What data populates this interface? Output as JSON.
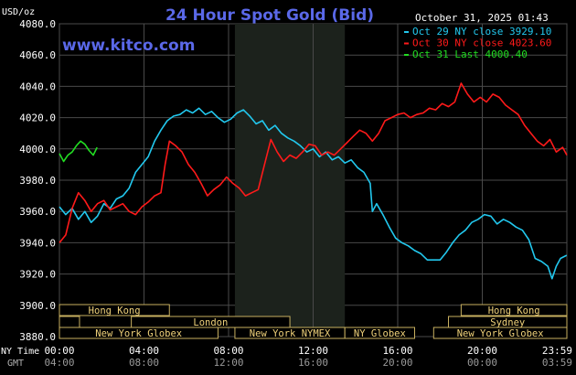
{
  "chart_data": {
    "type": "line",
    "title": "24 Hour Spot Gold (Bid)",
    "site": "www.kitco.com",
    "timestamp": "October 31, 2025 01:43",
    "unit_label": "USD/oz",
    "ylim": [
      3880,
      4080
    ],
    "y_ticks": [
      "4080.0",
      "4060.0",
      "4040.0",
      "4020.0",
      "4000.0",
      "3980.0",
      "3960.0",
      "3940.0",
      "3920.0",
      "3900.0",
      "3880.0"
    ],
    "y_tick_values": [
      4080,
      4060,
      4040,
      4020,
      4000,
      3980,
      3960,
      3940,
      3920,
      3900,
      3880
    ],
    "x_range_hours": [
      0,
      24
    ],
    "x_tick_hours": [
      0,
      4,
      8,
      12,
      16,
      20,
      24
    ],
    "ny_time_label": "NY Time",
    "gmt_label": "GMT",
    "ny_ticks": [
      "00:00",
      "04:00",
      "08:00",
      "12:00",
      "16:00",
      "20:00",
      "23:59"
    ],
    "gmt_ticks": [
      "04:00",
      "08:00",
      "12:00",
      "16:00",
      "20:00",
      "00:00",
      "03:59"
    ],
    "legend_placement": "top-right",
    "shaded_region_hours": [
      8.3,
      13.5
    ],
    "series": [
      {
        "name": "Oct 29 NY close 3929.10",
        "color": "#22c8ee",
        "points": [
          [
            0,
            3963
          ],
          [
            0.3,
            3958
          ],
          [
            0.6,
            3962
          ],
          [
            0.9,
            3955
          ],
          [
            1.2,
            3960
          ],
          [
            1.5,
            3953
          ],
          [
            1.8,
            3957
          ],
          [
            2.1,
            3965
          ],
          [
            2.4,
            3962
          ],
          [
            2.7,
            3968
          ],
          [
            3.0,
            3970
          ],
          [
            3.3,
            3975
          ],
          [
            3.6,
            3985
          ],
          [
            3.9,
            3990
          ],
          [
            4.2,
            3995
          ],
          [
            4.5,
            4005
          ],
          [
            4.8,
            4012
          ],
          [
            5.1,
            4018
          ],
          [
            5.4,
            4021
          ],
          [
            5.7,
            4022
          ],
          [
            6.0,
            4025
          ],
          [
            6.3,
            4023
          ],
          [
            6.6,
            4026
          ],
          [
            6.9,
            4022
          ],
          [
            7.2,
            4024
          ],
          [
            7.5,
            4020
          ],
          [
            7.8,
            4017
          ],
          [
            8.1,
            4019
          ],
          [
            8.4,
            4023
          ],
          [
            8.7,
            4025
          ],
          [
            9.0,
            4021
          ],
          [
            9.3,
            4016
          ],
          [
            9.6,
            4018
          ],
          [
            9.9,
            4012
          ],
          [
            10.2,
            4015
          ],
          [
            10.5,
            4010
          ],
          [
            10.8,
            4007
          ],
          [
            11.1,
            4005
          ],
          [
            11.4,
            4002
          ],
          [
            11.7,
            3998
          ],
          [
            12.0,
            4000
          ],
          [
            12.3,
            3995
          ],
          [
            12.6,
            3998
          ],
          [
            12.9,
            3993
          ],
          [
            13.2,
            3995
          ],
          [
            13.5,
            3991
          ],
          [
            13.8,
            3993
          ],
          [
            14.1,
            3988
          ],
          [
            14.4,
            3985
          ],
          [
            14.7,
            3978
          ],
          [
            14.8,
            3960
          ],
          [
            15.0,
            3965
          ],
          [
            15.3,
            3958
          ],
          [
            15.6,
            3950
          ],
          [
            15.9,
            3943
          ],
          [
            16.2,
            3940
          ],
          [
            16.5,
            3938
          ],
          [
            16.8,
            3935
          ],
          [
            17.1,
            3933
          ],
          [
            17.4,
            3929
          ],
          [
            18.0,
            3929
          ],
          [
            18.3,
            3934
          ],
          [
            18.6,
            3940
          ],
          [
            18.9,
            3945
          ],
          [
            19.2,
            3948
          ],
          [
            19.5,
            3953
          ],
          [
            19.8,
            3955
          ],
          [
            20.1,
            3958
          ],
          [
            20.4,
            3957
          ],
          [
            20.7,
            3952
          ],
          [
            21.0,
            3955
          ],
          [
            21.3,
            3953
          ],
          [
            21.6,
            3950
          ],
          [
            21.9,
            3948
          ],
          [
            22.2,
            3942
          ],
          [
            22.5,
            3930
          ],
          [
            22.8,
            3928
          ],
          [
            23.1,
            3925
          ],
          [
            23.3,
            3917
          ],
          [
            23.5,
            3925
          ],
          [
            23.7,
            3930
          ],
          [
            23.99,
            3932
          ]
        ]
      },
      {
        "name": "Oct 30 NY close 4023.60",
        "color": "#ff1a1a",
        "points": [
          [
            0,
            3940
          ],
          [
            0.3,
            3945
          ],
          [
            0.6,
            3962
          ],
          [
            0.9,
            3972
          ],
          [
            1.2,
            3967
          ],
          [
            1.5,
            3960
          ],
          [
            1.8,
            3965
          ],
          [
            2.1,
            3967
          ],
          [
            2.4,
            3961
          ],
          [
            2.7,
            3963
          ],
          [
            3.0,
            3965
          ],
          [
            3.3,
            3960
          ],
          [
            3.6,
            3958
          ],
          [
            3.9,
            3963
          ],
          [
            4.2,
            3966
          ],
          [
            4.5,
            3970
          ],
          [
            4.8,
            3972
          ],
          [
            5.0,
            3990
          ],
          [
            5.2,
            4005
          ],
          [
            5.5,
            4002
          ],
          [
            5.8,
            3998
          ],
          [
            6.1,
            3990
          ],
          [
            6.4,
            3985
          ],
          [
            6.7,
            3978
          ],
          [
            7.0,
            3970
          ],
          [
            7.3,
            3974
          ],
          [
            7.6,
            3977
          ],
          [
            7.9,
            3982
          ],
          [
            8.2,
            3978
          ],
          [
            8.5,
            3975
          ],
          [
            8.8,
            3970
          ],
          [
            9.1,
            3972
          ],
          [
            9.4,
            3974
          ],
          [
            9.7,
            3990
          ],
          [
            10.0,
            4006
          ],
          [
            10.3,
            3998
          ],
          [
            10.6,
            3992
          ],
          [
            10.9,
            3996
          ],
          [
            11.2,
            3994
          ],
          [
            11.5,
            3998
          ],
          [
            11.8,
            4003
          ],
          [
            12.1,
            4002
          ],
          [
            12.4,
            3996
          ],
          [
            12.7,
            3998
          ],
          [
            13.0,
            3996
          ],
          [
            13.3,
            4000
          ],
          [
            13.6,
            4004
          ],
          [
            13.9,
            4008
          ],
          [
            14.2,
            4012
          ],
          [
            14.5,
            4010
          ],
          [
            14.8,
            4005
          ],
          [
            15.1,
            4010
          ],
          [
            15.4,
            4018
          ],
          [
            15.7,
            4020
          ],
          [
            16.0,
            4022
          ],
          [
            16.3,
            4023
          ],
          [
            16.6,
            4020
          ],
          [
            16.9,
            4022
          ],
          [
            17.2,
            4023
          ],
          [
            17.5,
            4026
          ],
          [
            17.8,
            4025
          ],
          [
            18.1,
            4029
          ],
          [
            18.4,
            4027
          ],
          [
            18.7,
            4030
          ],
          [
            19.0,
            4042
          ],
          [
            19.3,
            4035
          ],
          [
            19.6,
            4030
          ],
          [
            19.9,
            4033
          ],
          [
            20.2,
            4030
          ],
          [
            20.5,
            4035
          ],
          [
            20.8,
            4033
          ],
          [
            21.1,
            4028
          ],
          [
            21.4,
            4025
          ],
          [
            21.7,
            4022
          ],
          [
            22.0,
            4015
          ],
          [
            22.3,
            4010
          ],
          [
            22.6,
            4005
          ],
          [
            22.9,
            4002
          ],
          [
            23.2,
            4006
          ],
          [
            23.5,
            3998
          ],
          [
            23.8,
            4001
          ],
          [
            24.0,
            3996
          ]
        ]
      },
      {
        "name": "Oct 31 Last 4000.40",
        "color": "#22dd22",
        "points": [
          [
            0,
            3997
          ],
          [
            0.2,
            3992
          ],
          [
            0.4,
            3996
          ],
          [
            0.6,
            3998
          ],
          [
            0.8,
            4002
          ],
          [
            1.0,
            4005
          ],
          [
            1.2,
            4003
          ],
          [
            1.4,
            3999
          ],
          [
            1.6,
            3996
          ],
          [
            1.78,
            4001
          ]
        ]
      }
    ],
    "session_bands": [
      {
        "label": "Hong Kong",
        "start": 0,
        "end": 5.2,
        "row": 0
      },
      {
        "label": "",
        "start": 0,
        "end": 0.95,
        "row": 1
      },
      {
        "label": "London",
        "start": 3.4,
        "end": 10.9,
        "row": 1
      },
      {
        "label": "New York Globex",
        "start": 0,
        "end": 7.5,
        "row": 2
      },
      {
        "label": "New York NYMEX",
        "start": 8.3,
        "end": 13.5,
        "row": 2
      },
      {
        "label": "NY Globex",
        "start": 13.5,
        "end": 16.8,
        "row": 2
      },
      {
        "label": "Hong Kong",
        "start": 19.0,
        "end": 24.0,
        "row": 0
      },
      {
        "label": "Sydney",
        "start": 18.4,
        "end": 24.0,
        "row": 1
      },
      {
        "label": "New York Globex",
        "start": 17.7,
        "end": 24.0,
        "row": 2
      }
    ]
  }
}
